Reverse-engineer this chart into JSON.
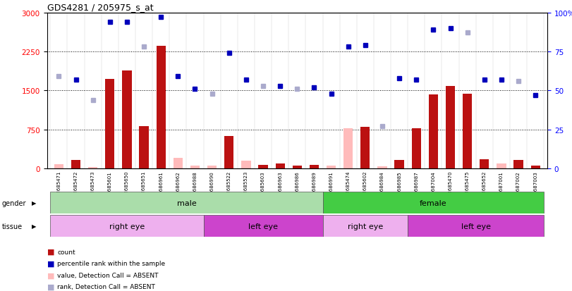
{
  "title": "GDS4281 / 205975_s_at",
  "samples": [
    "GSM685471",
    "GSM685472",
    "GSM685473",
    "GSM685601",
    "GSM685650",
    "GSM685651",
    "GSM686961",
    "GSM686962",
    "GSM686988",
    "GSM686990",
    "GSM685522",
    "GSM685523",
    "GSM685603",
    "GSM686963",
    "GSM686986",
    "GSM686989",
    "GSM686991",
    "GSM685474",
    "GSM685602",
    "GSM686984",
    "GSM686985",
    "GSM686987",
    "GSM687004",
    "GSM685470",
    "GSM685475",
    "GSM685652",
    "GSM687001",
    "GSM687002",
    "GSM687003"
  ],
  "count": [
    80,
    160,
    25,
    1720,
    1880,
    820,
    2360,
    200,
    50,
    50,
    630,
    145,
    65,
    100,
    60,
    75,
    50,
    780,
    800,
    40,
    160,
    780,
    1420,
    1580,
    1440,
    175,
    90,
    165,
    50
  ],
  "percentile_rank": [
    59,
    57,
    44,
    94,
    94,
    78,
    97,
    59,
    51,
    48,
    74,
    57,
    53,
    53,
    51,
    52,
    48,
    78,
    79,
    27,
    58,
    57,
    89,
    90,
    87,
    57,
    57,
    56,
    47
  ],
  "absent_count": [
    1,
    0,
    1,
    0,
    0,
    0,
    0,
    1,
    1,
    1,
    0,
    1,
    0,
    0,
    0,
    0,
    1,
    1,
    0,
    1,
    0,
    0,
    0,
    0,
    0,
    0,
    1,
    0,
    0
  ],
  "absent_rank": [
    1,
    0,
    1,
    0,
    0,
    1,
    0,
    0,
    0,
    1,
    0,
    0,
    1,
    0,
    1,
    0,
    0,
    0,
    0,
    1,
    0,
    0,
    0,
    0,
    1,
    0,
    0,
    1,
    0
  ],
  "gender_groups": [
    {
      "label": "male",
      "start": 0,
      "end": 16
    },
    {
      "label": "female",
      "start": 16,
      "end": 29
    }
  ],
  "tissue_groups": [
    {
      "label": "right eye",
      "start": 0,
      "end": 9
    },
    {
      "label": "left eye",
      "start": 9,
      "end": 16
    },
    {
      "label": "right eye",
      "start": 16,
      "end": 21
    },
    {
      "label": "left eye",
      "start": 21,
      "end": 29
    }
  ],
  "yticks_left": [
    0,
    750,
    1500,
    2250,
    3000
  ],
  "ytick_labels_left": [
    "0",
    "750",
    "1500",
    "2250",
    "3000"
  ],
  "yticks_right": [
    0,
    25,
    50,
    75,
    100
  ],
  "ytick_labels_right": [
    "0",
    "25",
    "50",
    "75",
    "100%"
  ],
  "bar_color": "#bb1111",
  "bar_absent_color": "#ffbbbb",
  "dot_color": "#0000bb",
  "dot_absent_color": "#aaaacc",
  "gender_color_male": "#aaddaa",
  "gender_color_female": "#44cc44",
  "tissue_right_color": "#eeb0ee",
  "tissue_left_color": "#cc44cc"
}
